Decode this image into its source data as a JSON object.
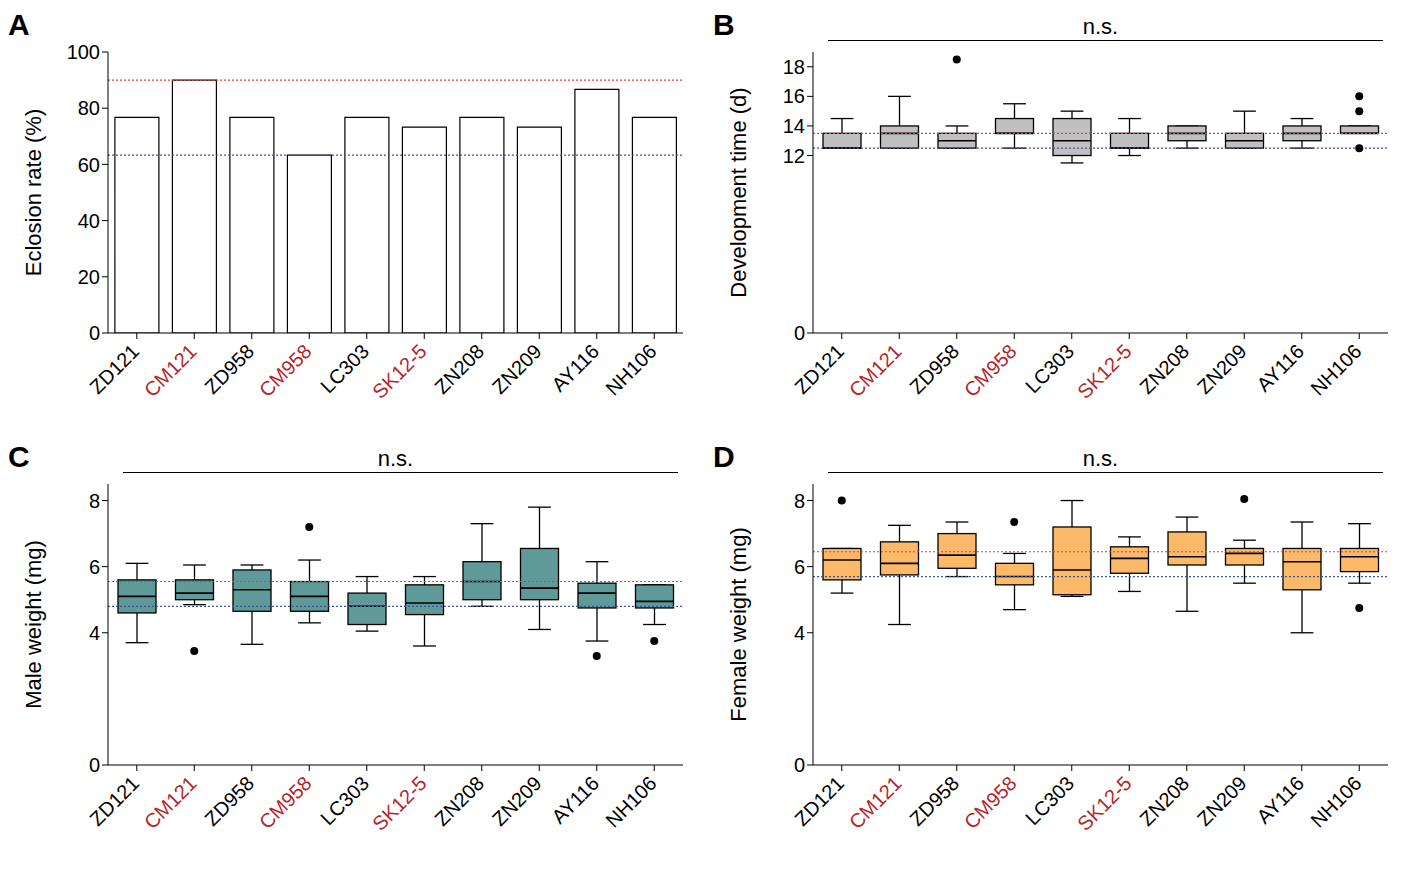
{
  "chart_data": [
    {
      "panel": "A",
      "type": "bar",
      "categories": [
        "ZD121",
        "CM121",
        "ZD958",
        "CM958",
        "LC303",
        "SK12-5",
        "ZN208",
        "ZN209",
        "AY116",
        "NH106"
      ],
      "values": [
        76.7,
        90,
        76.7,
        63.3,
        76.7,
        73.3,
        76.7,
        73.3,
        86.7,
        76.7
      ],
      "color": "#ffffff",
      "y_label": "Eclosion rate (%)",
      "ylim": [
        0,
        100
      ],
      "yticks": [
        0,
        20,
        40,
        60,
        80,
        100
      ],
      "reference_lines": [
        {
          "value": 90,
          "color": "#e0403c"
        },
        {
          "value": 63.3,
          "color": "#3a5a96"
        }
      ]
    },
    {
      "panel": "B",
      "type": "box",
      "annotation": "n.s.",
      "categories": [
        "ZD121",
        "CM121",
        "ZD958",
        "CM958",
        "LC303",
        "SK12-5",
        "ZN208",
        "ZN209",
        "AY116",
        "NH106"
      ],
      "color": "#c0c0c0",
      "y_label": "Development time (d)",
      "ylim": [
        0,
        19
      ],
      "yticks": [
        0,
        12,
        14,
        16,
        18
      ],
      "reference_lines": [
        {
          "value": 13.5,
          "color": "#e0403c"
        },
        {
          "value": 12.5,
          "color": "#3a5a96"
        }
      ],
      "boxes": [
        {
          "whislo": 12.5,
          "q1": 12.5,
          "med": 12.5,
          "q3": 13.5,
          "whishi": 14.5,
          "fliers": []
        },
        {
          "whislo": 12.5,
          "q1": 12.5,
          "med": 13.5,
          "q3": 14,
          "whishi": 16,
          "fliers": []
        },
        {
          "whislo": 12.5,
          "q1": 12.5,
          "med": 13,
          "q3": 13.5,
          "whishi": 14,
          "fliers": [
            18.5
          ]
        },
        {
          "whislo": 12.5,
          "q1": 13.5,
          "med": 13.5,
          "q3": 14.5,
          "whishi": 15.5,
          "fliers": []
        },
        {
          "whislo": 11.5,
          "q1": 12,
          "med": 13,
          "q3": 14.5,
          "whishi": 15,
          "fliers": []
        },
        {
          "whislo": 12,
          "q1": 12.5,
          "med": 12.5,
          "q3": 13.5,
          "whishi": 14.5,
          "fliers": []
        },
        {
          "whislo": 12.5,
          "q1": 13,
          "med": 13.5,
          "q3": 14,
          "whishi": 14,
          "fliers": []
        },
        {
          "whislo": 12.5,
          "q1": 12.5,
          "med": 13,
          "q3": 13.5,
          "whishi": 15,
          "fliers": []
        },
        {
          "whislo": 12.5,
          "q1": 13,
          "med": 13.5,
          "q3": 14,
          "whishi": 14.5,
          "fliers": []
        },
        {
          "whislo": 13.5,
          "q1": 13.5,
          "med": 13.5,
          "q3": 14,
          "whishi": 14,
          "fliers": [
            16,
            15,
            12.5
          ]
        }
      ]
    },
    {
      "panel": "C",
      "type": "box",
      "annotation": "n.s.",
      "categories": [
        "ZD121",
        "CM121",
        "ZD958",
        "CM958",
        "LC303",
        "SK12-5",
        "ZN208",
        "ZN209",
        "AY116",
        "NH106"
      ],
      "color": "#5f9a98",
      "y_label": "Male weight (mg)",
      "ylim": [
        0,
        8.5
      ],
      "yticks": [
        0,
        4,
        6,
        8
      ],
      "reference_lines": [
        {
          "value": 5.55,
          "color": "#e0403c"
        },
        {
          "value": 4.8,
          "color": "#3a5a96"
        }
      ],
      "boxes": [
        {
          "whislo": 3.7,
          "q1": 4.6,
          "med": 5.1,
          "q3": 5.6,
          "whishi": 6.1,
          "fliers": []
        },
        {
          "whislo": 4.85,
          "q1": 5.0,
          "med": 5.2,
          "q3": 5.6,
          "whishi": 6.05,
          "fliers": [
            3.45
          ]
        },
        {
          "whislo": 3.65,
          "q1": 4.65,
          "med": 5.3,
          "q3": 5.9,
          "whishi": 6.05,
          "fliers": []
        },
        {
          "whislo": 4.3,
          "q1": 4.65,
          "med": 5.1,
          "q3": 5.55,
          "whishi": 6.2,
          "fliers": [
            7.2
          ]
        },
        {
          "whislo": 4.05,
          "q1": 4.25,
          "med": 4.8,
          "q3": 5.2,
          "whishi": 5.7,
          "fliers": []
        },
        {
          "whislo": 3.6,
          "q1": 4.55,
          "med": 4.9,
          "q3": 5.45,
          "whishi": 5.7,
          "fliers": []
        },
        {
          "whislo": 4.8,
          "q1": 5.0,
          "med": 5.55,
          "q3": 6.15,
          "whishi": 7.3,
          "fliers": []
        },
        {
          "whislo": 4.1,
          "q1": 5.0,
          "med": 5.35,
          "q3": 6.55,
          "whishi": 7.8,
          "fliers": []
        },
        {
          "whislo": 3.75,
          "q1": 4.75,
          "med": 5.2,
          "q3": 5.5,
          "whishi": 6.15,
          "fliers": [
            3.3
          ]
        },
        {
          "whislo": 4.25,
          "q1": 4.75,
          "med": 4.95,
          "q3": 5.45,
          "whishi": 5.45,
          "fliers": [
            3.75
          ]
        }
      ]
    },
    {
      "panel": "D",
      "type": "box",
      "annotation": "n.s.",
      "categories": [
        "ZD121",
        "CM121",
        "ZD958",
        "CM958",
        "LC303",
        "SK12-5",
        "ZN208",
        "ZN209",
        "AY116",
        "NH106"
      ],
      "color": "#fdb96a",
      "y_label": "Female weight (mg)",
      "ylim": [
        0,
        8.5
      ],
      "yticks": [
        0,
        4,
        6,
        8
      ],
      "reference_lines": [
        {
          "value": 6.45,
          "color": "#e0403c"
        },
        {
          "value": 5.7,
          "color": "#3a5a96"
        }
      ],
      "boxes": [
        {
          "whislo": 5.2,
          "q1": 5.6,
          "med": 6.2,
          "q3": 6.55,
          "whishi": 6.55,
          "fliers": [
            8.0
          ]
        },
        {
          "whislo": 4.25,
          "q1": 5.75,
          "med": 6.1,
          "q3": 6.75,
          "whishi": 7.25,
          "fliers": []
        },
        {
          "whislo": 5.7,
          "q1": 5.95,
          "med": 6.35,
          "q3": 7.0,
          "whishi": 7.35,
          "fliers": []
        },
        {
          "whislo": 4.7,
          "q1": 5.45,
          "med": 5.7,
          "q3": 6.1,
          "whishi": 6.4,
          "fliers": [
            7.35
          ]
        },
        {
          "whislo": 5.1,
          "q1": 5.15,
          "med": 5.9,
          "q3": 7.2,
          "whishi": 8.0,
          "fliers": []
        },
        {
          "whislo": 5.25,
          "q1": 5.8,
          "med": 6.25,
          "q3": 6.6,
          "whishi": 6.9,
          "fliers": []
        },
        {
          "whislo": 4.65,
          "q1": 6.05,
          "med": 6.3,
          "q3": 7.05,
          "whishi": 7.5,
          "fliers": []
        },
        {
          "whislo": 5.5,
          "q1": 6.05,
          "med": 6.4,
          "q3": 6.55,
          "whishi": 6.8,
          "fliers": [
            8.05
          ]
        },
        {
          "whislo": 4.0,
          "q1": 5.3,
          "med": 6.15,
          "q3": 6.55,
          "whishi": 7.35,
          "fliers": []
        },
        {
          "whislo": 5.5,
          "q1": 5.85,
          "med": 6.3,
          "q3": 6.55,
          "whishi": 7.3,
          "fliers": [
            4.75
          ]
        }
      ]
    }
  ]
}
